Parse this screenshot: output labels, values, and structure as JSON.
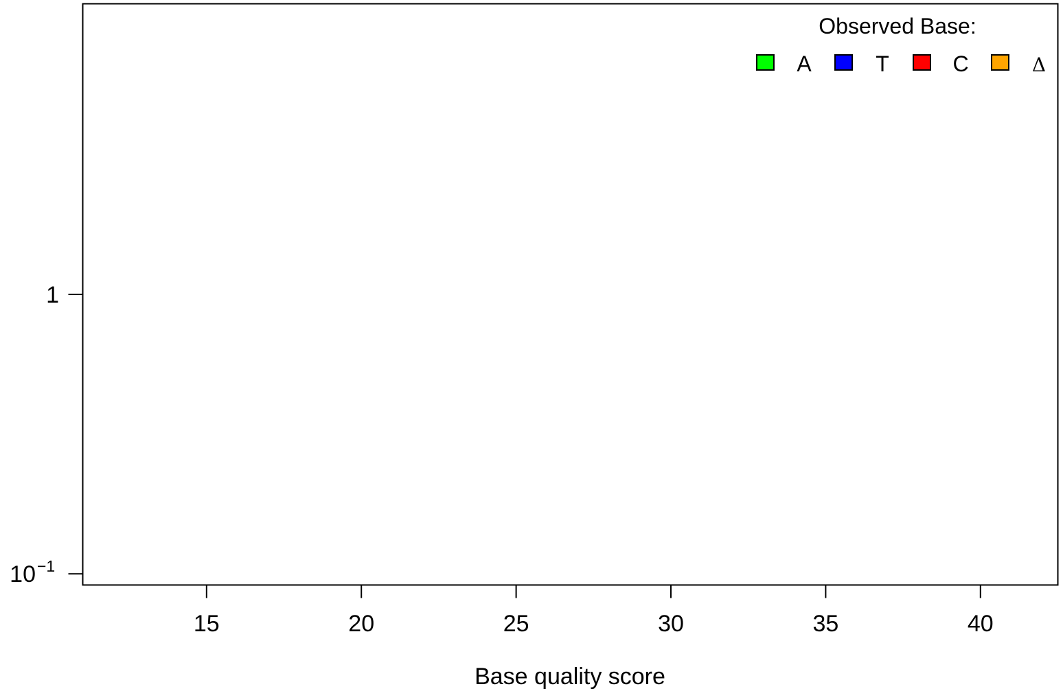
{
  "chart_data": {
    "type": "scatter",
    "title": "",
    "xlabel": "Base quality score",
    "ylabel": "",
    "xlim": [
      11,
      42.5
    ],
    "ylim_log10": [
      -1.04,
      1.04
    ],
    "y_scale": "log",
    "x_ticks": [
      {
        "value": 15,
        "label": "15"
      },
      {
        "value": 20,
        "label": "20"
      },
      {
        "value": 25,
        "label": "25"
      },
      {
        "value": 30,
        "label": "30"
      },
      {
        "value": 35,
        "label": "35"
      },
      {
        "value": 40,
        "label": "40"
      }
    ],
    "y_ticks": [
      {
        "value": 1,
        "label": "1",
        "exp": ""
      },
      {
        "value": 0.1,
        "label": "10",
        "exp": "−1"
      }
    ],
    "legend": {
      "title": "Observed Base:",
      "position": "top-right",
      "entries": [
        {
          "label": "A",
          "color": "#00ff00"
        },
        {
          "label": "T",
          "color": "#0000ff"
        },
        {
          "label": "C",
          "color": "#ff0000"
        },
        {
          "label": "Δ",
          "color": "#ffa500"
        }
      ]
    },
    "grid": false,
    "series": []
  }
}
